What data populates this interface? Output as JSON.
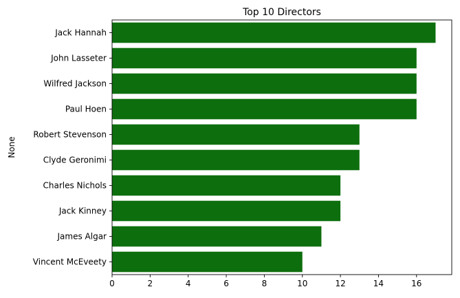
{
  "chart_data": {
    "type": "bar",
    "orientation": "horizontal",
    "title": "Top 10 Directors",
    "xlabel": "",
    "ylabel": "None",
    "categories": [
      "Jack Hannah",
      "John Lasseter",
      "Wilfred Jackson",
      "Paul Hoen",
      "Robert Stevenson",
      "Clyde Geronimi",
      "Charles Nichols",
      "Jack Kinney",
      "James Algar",
      "Vincent McEveety"
    ],
    "values": [
      17,
      16,
      16,
      16,
      13,
      13,
      12,
      12,
      11,
      10
    ],
    "xlim": [
      0,
      17.85
    ],
    "xticks": [
      0,
      2,
      4,
      6,
      8,
      10,
      12,
      14,
      16
    ],
    "bar_color": "#0d6e0d",
    "grid": false,
    "legend": "none"
  }
}
